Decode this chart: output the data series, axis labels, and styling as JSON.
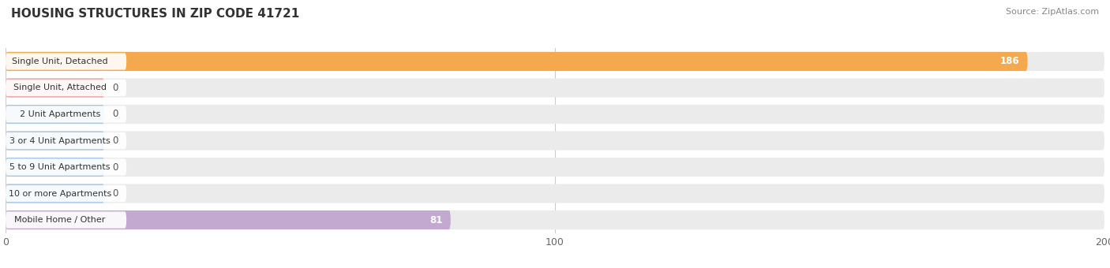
{
  "title": "HOUSING STRUCTURES IN ZIP CODE 41721",
  "source": "Source: ZipAtlas.com",
  "categories": [
    "Single Unit, Detached",
    "Single Unit, Attached",
    "2 Unit Apartments",
    "3 or 4 Unit Apartments",
    "5 to 9 Unit Apartments",
    "10 or more Apartments",
    "Mobile Home / Other"
  ],
  "values": [
    186,
    0,
    0,
    0,
    0,
    0,
    81
  ],
  "bar_colors": [
    "#F5A94E",
    "#F4A0A0",
    "#A8C4E2",
    "#A8C4E2",
    "#A8C4E2",
    "#A8C4E2",
    "#C3A8CF"
  ],
  "xlim": [
    0,
    200
  ],
  "xticks": [
    0,
    100,
    200
  ],
  "row_bg_color": "#EBEBEB",
  "background_color": "#FFFFFF",
  "zero_bar_width": 18
}
